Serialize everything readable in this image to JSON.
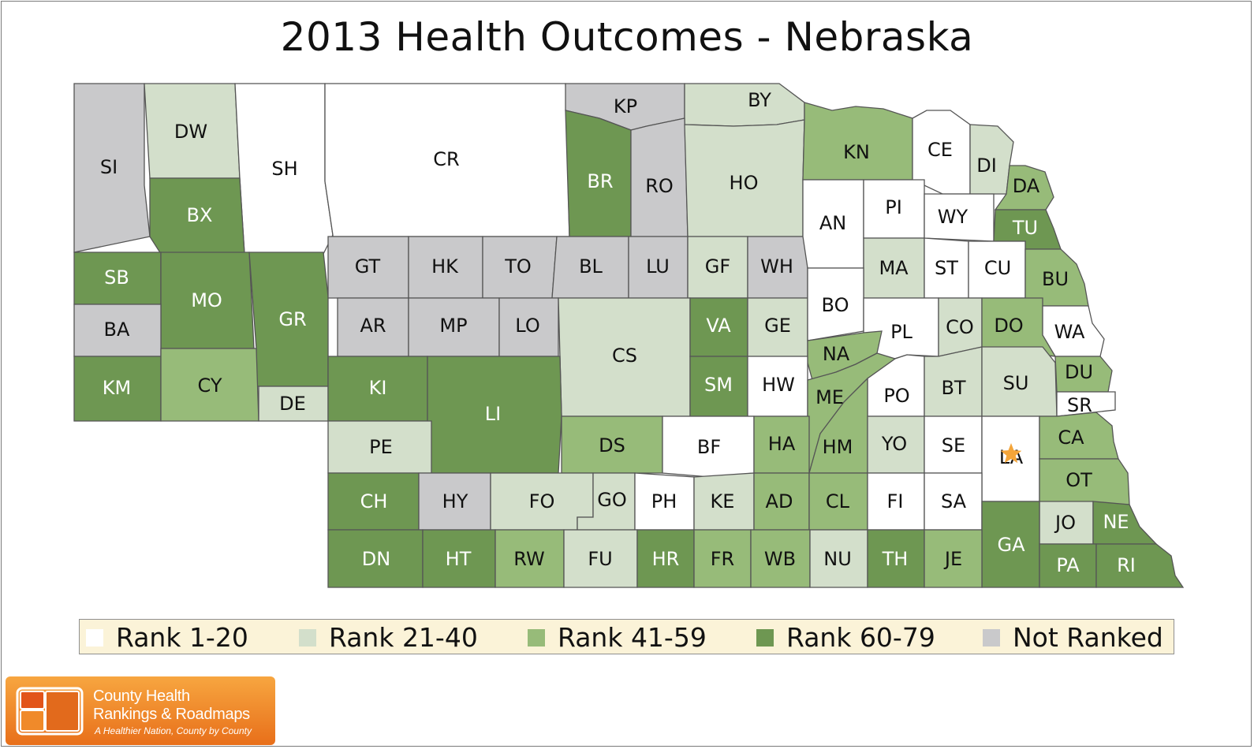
{
  "title": "2013 Health Outcomes - Nebraska",
  "colors": {
    "rank_1_20": "#ffffff",
    "rank_21_40": "#d3dfcb",
    "rank_41_59": "#97bb79",
    "rank_60_79": "#6e9752",
    "not_ranked": "#c9c9cb",
    "star": "#f4a53a"
  },
  "legend": [
    {
      "label": "Rank 1-20",
      "cls": "rank_1_20"
    },
    {
      "label": "Rank 21-40",
      "cls": "rank_21_40"
    },
    {
      "label": "Rank 41-59",
      "cls": "rank_41_59"
    },
    {
      "label": "Rank 60-79",
      "cls": "rank_60_79"
    },
    {
      "label": "Not Ranked",
      "cls": "not_ranked"
    }
  ],
  "counties": [
    {
      "code": "SI",
      "cls": "not_ranked"
    },
    {
      "code": "DW",
      "cls": "rank_21_40"
    },
    {
      "code": "SH",
      "cls": "rank_1_20"
    },
    {
      "code": "CR",
      "cls": "rank_1_20"
    },
    {
      "code": "KP",
      "cls": "not_ranked"
    },
    {
      "code": "BY",
      "cls": "rank_21_40"
    },
    {
      "code": "BR",
      "cls": "rank_60_79"
    },
    {
      "code": "RO",
      "cls": "not_ranked"
    },
    {
      "code": "HO",
      "cls": "rank_21_40"
    },
    {
      "code": "KN",
      "cls": "rank_41_59"
    },
    {
      "code": "CE",
      "cls": "rank_1_20"
    },
    {
      "code": "DI",
      "cls": "rank_21_40"
    },
    {
      "code": "DA",
      "cls": "rank_41_59"
    },
    {
      "code": "BX",
      "cls": "rank_60_79"
    },
    {
      "code": "SB",
      "cls": "rank_60_79"
    },
    {
      "code": "MO",
      "cls": "rank_60_79"
    },
    {
      "code": "GR",
      "cls": "rank_60_79"
    },
    {
      "code": "BA",
      "cls": "not_ranked"
    },
    {
      "code": "KM",
      "cls": "rank_60_79"
    },
    {
      "code": "CY",
      "cls": "rank_41_59"
    },
    {
      "code": "DE",
      "cls": "rank_21_40"
    },
    {
      "code": "GT",
      "cls": "not_ranked"
    },
    {
      "code": "HK",
      "cls": "not_ranked"
    },
    {
      "code": "TO",
      "cls": "not_ranked"
    },
    {
      "code": "BL",
      "cls": "not_ranked"
    },
    {
      "code": "LU",
      "cls": "not_ranked"
    },
    {
      "code": "GF",
      "cls": "rank_21_40"
    },
    {
      "code": "WH",
      "cls": "not_ranked"
    },
    {
      "code": "AR",
      "cls": "not_ranked"
    },
    {
      "code": "MP",
      "cls": "not_ranked"
    },
    {
      "code": "LO",
      "cls": "not_ranked"
    },
    {
      "code": "CS",
      "cls": "rank_21_40"
    },
    {
      "code": "VA",
      "cls": "rank_60_79"
    },
    {
      "code": "GE",
      "cls": "rank_21_40"
    },
    {
      "code": "AN",
      "cls": "rank_1_20"
    },
    {
      "code": "PI",
      "cls": "rank_1_20"
    },
    {
      "code": "WY",
      "cls": "rank_1_20"
    },
    {
      "code": "TU",
      "cls": "rank_60_79"
    },
    {
      "code": "MA",
      "cls": "rank_21_40"
    },
    {
      "code": "ST",
      "cls": "rank_1_20"
    },
    {
      "code": "CU",
      "cls": "rank_1_20"
    },
    {
      "code": "BU",
      "cls": "rank_41_59"
    },
    {
      "code": "BO",
      "cls": "rank_1_20"
    },
    {
      "code": "PL",
      "cls": "rank_1_20"
    },
    {
      "code": "CO",
      "cls": "rank_21_40"
    },
    {
      "code": "DO",
      "cls": "rank_41_59"
    },
    {
      "code": "WA",
      "cls": "rank_1_20"
    },
    {
      "code": "NA",
      "cls": "rank_41_59"
    },
    {
      "code": "KI",
      "cls": "rank_60_79"
    },
    {
      "code": "LI",
      "cls": "rank_60_79"
    },
    {
      "code": "SM",
      "cls": "rank_60_79"
    },
    {
      "code": "HW",
      "cls": "rank_1_20"
    },
    {
      "code": "ME",
      "cls": "rank_41_59"
    },
    {
      "code": "PO",
      "cls": "rank_1_20"
    },
    {
      "code": "BT",
      "cls": "rank_21_40"
    },
    {
      "code": "SU",
      "cls": "rank_21_40"
    },
    {
      "code": "DU",
      "cls": "rank_41_59"
    },
    {
      "code": "SR",
      "cls": "rank_1_20"
    },
    {
      "code": "PE",
      "cls": "rank_21_40"
    },
    {
      "code": "DS",
      "cls": "rank_41_59"
    },
    {
      "code": "BF",
      "cls": "rank_1_20"
    },
    {
      "code": "HA",
      "cls": "rank_41_59"
    },
    {
      "code": "HM",
      "cls": "rank_41_59"
    },
    {
      "code": "YO",
      "cls": "rank_21_40"
    },
    {
      "code": "SE",
      "cls": "rank_1_20"
    },
    {
      "code": "LA",
      "cls": "rank_1_20",
      "star": true
    },
    {
      "code": "CA",
      "cls": "rank_41_59"
    },
    {
      "code": "CH",
      "cls": "rank_60_79"
    },
    {
      "code": "HY",
      "cls": "not_ranked"
    },
    {
      "code": "FO",
      "cls": "rank_21_40"
    },
    {
      "code": "GO",
      "cls": "rank_21_40"
    },
    {
      "code": "PH",
      "cls": "rank_1_20"
    },
    {
      "code": "KE",
      "cls": "rank_21_40"
    },
    {
      "code": "AD",
      "cls": "rank_41_59"
    },
    {
      "code": "CL",
      "cls": "rank_41_59"
    },
    {
      "code": "FI",
      "cls": "rank_1_20"
    },
    {
      "code": "SA",
      "cls": "rank_1_20"
    },
    {
      "code": "OT",
      "cls": "rank_41_59"
    },
    {
      "code": "JO",
      "cls": "rank_21_40"
    },
    {
      "code": "NE",
      "cls": "rank_60_79"
    },
    {
      "code": "GA",
      "cls": "rank_60_79"
    },
    {
      "code": "DN",
      "cls": "rank_60_79"
    },
    {
      "code": "HT",
      "cls": "rank_60_79"
    },
    {
      "code": "RW",
      "cls": "rank_41_59"
    },
    {
      "code": "FU",
      "cls": "rank_21_40"
    },
    {
      "code": "HR",
      "cls": "rank_60_79"
    },
    {
      "code": "FR",
      "cls": "rank_41_59"
    },
    {
      "code": "WB",
      "cls": "rank_41_59"
    },
    {
      "code": "NU",
      "cls": "rank_21_40"
    },
    {
      "code": "TH",
      "cls": "rank_60_79"
    },
    {
      "code": "JE",
      "cls": "rank_41_59"
    },
    {
      "code": "PA",
      "cls": "rank_60_79"
    },
    {
      "code": "RI",
      "cls": "rank_60_79"
    }
  ],
  "logo": {
    "line1": "County Health",
    "line2": "Rankings & Roadmaps",
    "tagline": "A Healthier Nation, County by County"
  }
}
